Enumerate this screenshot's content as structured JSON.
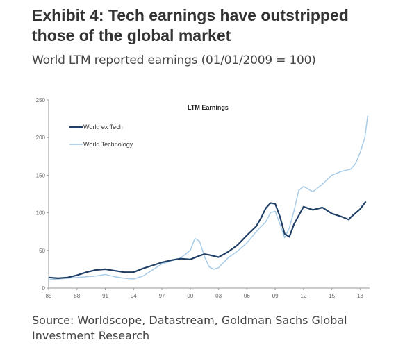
{
  "exhibit": {
    "title": "Exhibit 4: Tech earnings have outstripped those of the global market",
    "subtitle": "World LTM reported earnings (01/01/2009 = 100)",
    "source": "Source: Worldscope, Datastream, Goldman Sachs Global Investment Research"
  },
  "chart_data": {
    "type": "line",
    "title": "LTM Earnings",
    "xlabel": "",
    "ylabel": "",
    "xlim": [
      1985,
      2019
    ],
    "ylim": [
      0,
      250
    ],
    "xticks": [
      1985,
      1988,
      1991,
      1994,
      1997,
      2000,
      2003,
      2006,
      2009,
      2012,
      2015,
      2018
    ],
    "xtick_labels": [
      "85",
      "88",
      "91",
      "94",
      "97",
      "00",
      "03",
      "06",
      "09",
      "12",
      "15",
      "18"
    ],
    "yticks": [
      0,
      50,
      100,
      150,
      200,
      250
    ],
    "grid": false,
    "legend_position": "top-left",
    "series": [
      {
        "name": "World ex Tech",
        "color": "#1f3f66",
        "x": [
          1985,
          1986,
          1987,
          1988,
          1989,
          1990,
          1991,
          1992,
          1993,
          1994,
          1995,
          1996,
          1997,
          1998,
          1999,
          2000,
          2001,
          2001.5,
          2002,
          2003,
          2004,
          2005,
          2006,
          2007,
          2007.5,
          2008,
          2008.5,
          2009,
          2009.5,
          2010,
          2010.5,
          2011,
          2012,
          2013,
          2014,
          2015,
          2016,
          2016.8,
          2017,
          2018,
          2018.6
        ],
        "y": [
          14,
          13,
          14,
          17,
          21,
          24,
          25,
          23,
          21,
          21,
          26,
          30,
          34,
          37,
          39,
          38,
          43,
          45,
          44,
          41,
          48,
          57,
          70,
          82,
          93,
          106,
          113,
          112,
          95,
          72,
          68,
          85,
          108,
          104,
          107,
          99,
          95,
          91,
          94,
          105,
          115
        ],
        "width": 2.2
      },
      {
        "name": "World Technology",
        "color": "#a8cce8",
        "x": [
          1985,
          1986,
          1987,
          1988,
          1989,
          1990,
          1991,
          1992,
          1993,
          1994,
          1995,
          1996,
          1997,
          1998,
          1999,
          2000,
          2000.5,
          2001,
          2001.5,
          2002,
          2002.5,
          2003,
          2004,
          2005,
          2006,
          2007,
          2008,
          2008.5,
          2009,
          2009.5,
          2010,
          2010.5,
          2011,
          2011.5,
          2012,
          2013,
          2014,
          2015,
          2016,
          2017,
          2017.5,
          2018,
          2018.5,
          2018.8
        ],
        "y": [
          11,
          12,
          13,
          14,
          15,
          16,
          18,
          15,
          13,
          12,
          16,
          24,
          32,
          36,
          40,
          50,
          66,
          62,
          42,
          28,
          25,
          27,
          40,
          49,
          60,
          75,
          88,
          100,
          102,
          85,
          67,
          80,
          103,
          130,
          135,
          128,
          138,
          150,
          155,
          158,
          165,
          180,
          200,
          229
        ],
        "width": 1.5
      }
    ]
  }
}
